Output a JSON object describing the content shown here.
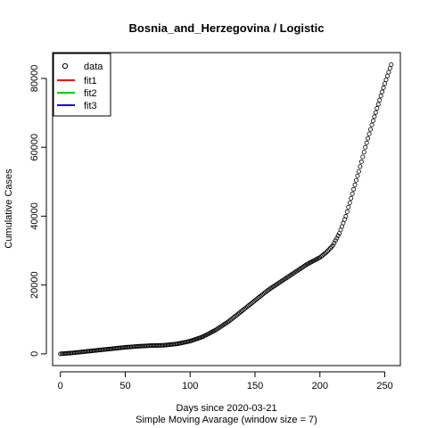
{
  "chart_data": {
    "type": "scatter",
    "title": "Bosnia_and_Herzegovina / Logistic",
    "xlabel": "Days since 2020-03-21",
    "subtitle": "Simple Moving Avarage (window size = 7)",
    "ylabel": "Cumulative Cases",
    "xlim": [
      -6,
      262
    ],
    "ylim": [
      -3400,
      87500
    ],
    "x_ticks": [
      0,
      50,
      100,
      150,
      200,
      250
    ],
    "y_ticks": [
      0,
      20000,
      40000,
      60000,
      80000
    ],
    "grid": false,
    "legend_position": "top-left",
    "legend": [
      {
        "label": "data",
        "symbol": "open-circle",
        "color": "#000000"
      },
      {
        "label": "fit1",
        "symbol": "line",
        "color": "#ff0000"
      },
      {
        "label": "fit2",
        "symbol": "line",
        "color": "#00cd00"
      },
      {
        "label": "fit3",
        "symbol": "line",
        "color": "#0000ff"
      }
    ],
    "series": [
      {
        "name": "data",
        "anchors": [
          [
            0,
            0
          ],
          [
            10,
            300
          ],
          [
            20,
            700
          ],
          [
            30,
            1100
          ],
          [
            40,
            1500
          ],
          [
            50,
            1900
          ],
          [
            60,
            2200
          ],
          [
            70,
            2400
          ],
          [
            80,
            2500
          ],
          [
            90,
            2900
          ],
          [
            100,
            3700
          ],
          [
            110,
            5000
          ],
          [
            120,
            7000
          ],
          [
            130,
            9500
          ],
          [
            140,
            12500
          ],
          [
            150,
            15500
          ],
          [
            160,
            18500
          ],
          [
            170,
            21000
          ],
          [
            180,
            23500
          ],
          [
            190,
            26000
          ],
          [
            200,
            28000
          ],
          [
            205,
            29500
          ],
          [
            210,
            31500
          ],
          [
            215,
            35000
          ],
          [
            220,
            40000
          ],
          [
            225,
            46500
          ],
          [
            230,
            53000
          ],
          [
            235,
            60000
          ],
          [
            240,
            66500
          ],
          [
            245,
            72500
          ],
          [
            250,
            78500
          ],
          [
            255,
            84000
          ]
        ]
      }
    ]
  }
}
